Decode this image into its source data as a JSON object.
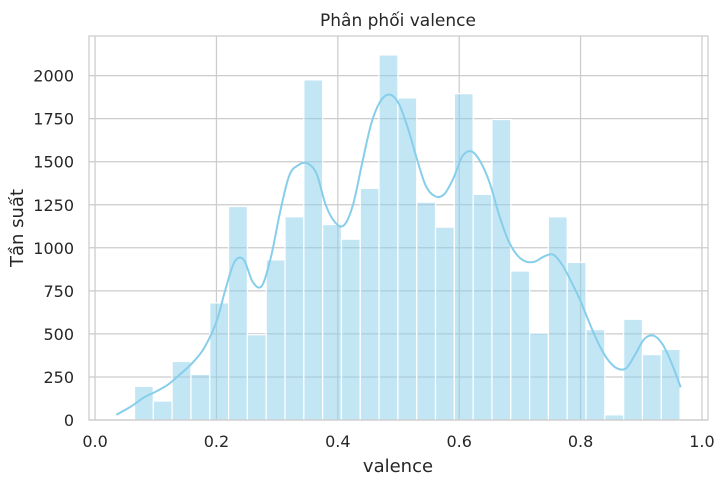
{
  "chart_data": {
    "type": "bar",
    "subtype": "histogram with kde line",
    "title": "Phân phối valence",
    "xlabel": "valence",
    "ylabel": "Tần suất",
    "xlim": [
      -0.01,
      1.01
    ],
    "ylim": [
      0,
      2230
    ],
    "xticks": [
      0.0,
      0.2,
      0.4,
      0.6,
      0.8,
      1.0
    ],
    "xtick_labels": [
      "0.0",
      "0.2",
      "0.4",
      "0.6",
      "0.8",
      "1.0"
    ],
    "yticks": [
      0,
      250,
      500,
      750,
      1000,
      1250,
      1500,
      1750,
      2000
    ],
    "ytick_labels": [
      "0",
      "250",
      "500",
      "750",
      "1000",
      "1250",
      "1500",
      "1750",
      "2000"
    ],
    "grid": true,
    "bar_color": "#87CEEB",
    "bar_opacity": 0.5,
    "line_color": "#87CEEB",
    "bin_edges": [
      0.065,
      0.096,
      0.127,
      0.158,
      0.189,
      0.22,
      0.251,
      0.282,
      0.313,
      0.344,
      0.375,
      0.406,
      0.437,
      0.468,
      0.499,
      0.53,
      0.561,
      0.592,
      0.623,
      0.654,
      0.685,
      0.716,
      0.747,
      0.778,
      0.809,
      0.84,
      0.871,
      0.902,
      0.933,
      0.964
    ],
    "counts": [
      195,
      110,
      340,
      265,
      680,
      1240,
      495,
      930,
      1180,
      1975,
      1135,
      1050,
      1345,
      2120,
      1870,
      1265,
      1120,
      1895,
      1310,
      1745,
      865,
      505,
      1180,
      915,
      525,
      30,
      585,
      380,
      410
    ],
    "kde": {
      "x": [
        0.035,
        0.06,
        0.08,
        0.1,
        0.12,
        0.14,
        0.16,
        0.18,
        0.2,
        0.215,
        0.23,
        0.245,
        0.26,
        0.275,
        0.29,
        0.305,
        0.32,
        0.335,
        0.35,
        0.365,
        0.38,
        0.395,
        0.41,
        0.425,
        0.44,
        0.455,
        0.47,
        0.485,
        0.5,
        0.515,
        0.53,
        0.545,
        0.56,
        0.575,
        0.59,
        0.605,
        0.62,
        0.635,
        0.65,
        0.665,
        0.68,
        0.695,
        0.71,
        0.725,
        0.74,
        0.755,
        0.77,
        0.785,
        0.8,
        0.815,
        0.83,
        0.845,
        0.86,
        0.875,
        0.89,
        0.905,
        0.92,
        0.935,
        0.95,
        0.965
      ],
      "y": [
        30,
        80,
        130,
        165,
        205,
        265,
        330,
        420,
        570,
        760,
        920,
        930,
        800,
        780,
        950,
        1210,
        1420,
        1480,
        1490,
        1430,
        1250,
        1150,
        1130,
        1250,
        1490,
        1720,
        1850,
        1890,
        1840,
        1700,
        1520,
        1360,
        1300,
        1310,
        1400,
        1530,
        1560,
        1500,
        1380,
        1200,
        1050,
        960,
        920,
        920,
        950,
        960,
        900,
        800,
        690,
        560,
        440,
        350,
        300,
        300,
        380,
        470,
        490,
        440,
        330,
        190
      ]
    }
  }
}
